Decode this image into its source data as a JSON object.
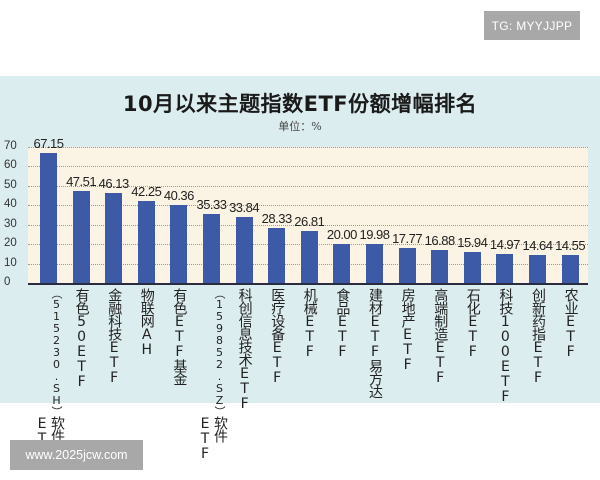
{
  "watermarks": {
    "top": "TG: MYYJJPP",
    "bottom": "www.2025jcw.com"
  },
  "chart_data": {
    "type": "bar",
    "title": "10月以来主题指数ETF份额增幅排名",
    "subtitle": "单位：%",
    "xlabel": "",
    "ylabel": "",
    "ylim": [
      0,
      70
    ],
    "yticks": [
      0,
      10,
      20,
      30,
      40,
      50,
      60,
      70
    ],
    "grid": true,
    "legend": "none",
    "bar_color": "#3d5aa6",
    "plot_background": "#fbf3e3",
    "panel_background": "#dcedf0",
    "categories": [
      "软件ETF（515230.SH）",
      "有色50ETF",
      "金融科技ETF",
      "物联网AH",
      "有色ETF基金",
      "软件ETF（159852.SZ）",
      "科创信息技术ETF",
      "医疗设备ETF",
      "机械ETF",
      "食品ETF",
      "建材ETF易方达",
      "房地产ETF",
      "高端制造ETF",
      "石化ETF",
      "科技100ETF",
      "创新药指ETF",
      "农业ETF"
    ],
    "values": [
      67.15,
      47.51,
      46.13,
      42.25,
      40.36,
      35.33,
      33.84,
      28.33,
      26.81,
      20.0,
      19.98,
      17.77,
      16.88,
      15.94,
      14.97,
      14.64,
      14.55
    ],
    "value_labels": [
      "67.15",
      "47.51",
      "46.13",
      "42.25",
      "40.36",
      "35.33",
      "33.84",
      "28.33",
      "26.81",
      "20.00",
      "19.98",
      "17.77",
      "16.88",
      "15.94",
      "14.97",
      "14.64",
      "14.55"
    ]
  },
  "axis_labels": [
    {
      "main": "软件ETF",
      "sub": "（515230.SH）"
    },
    {
      "main": "有色50ETF"
    },
    {
      "main": "金融科技ETF"
    },
    {
      "main": "物联网AH"
    },
    {
      "main": "有色ETF基金"
    },
    {
      "main": "软件ETF",
      "sub": "（159852.SZ）"
    },
    {
      "main": "科创信息技术ETF"
    },
    {
      "main": "医疗设备ETF"
    },
    {
      "main": "机械ETF"
    },
    {
      "main": "食品ETF"
    },
    {
      "main": "建材ETF易方达"
    },
    {
      "main": "房地产ETF"
    },
    {
      "main": "高端制造ETF"
    },
    {
      "main": "石化ETF"
    },
    {
      "main": "科技100ETF"
    },
    {
      "main": "创新药指ETF"
    },
    {
      "main": "农业ETF"
    }
  ]
}
